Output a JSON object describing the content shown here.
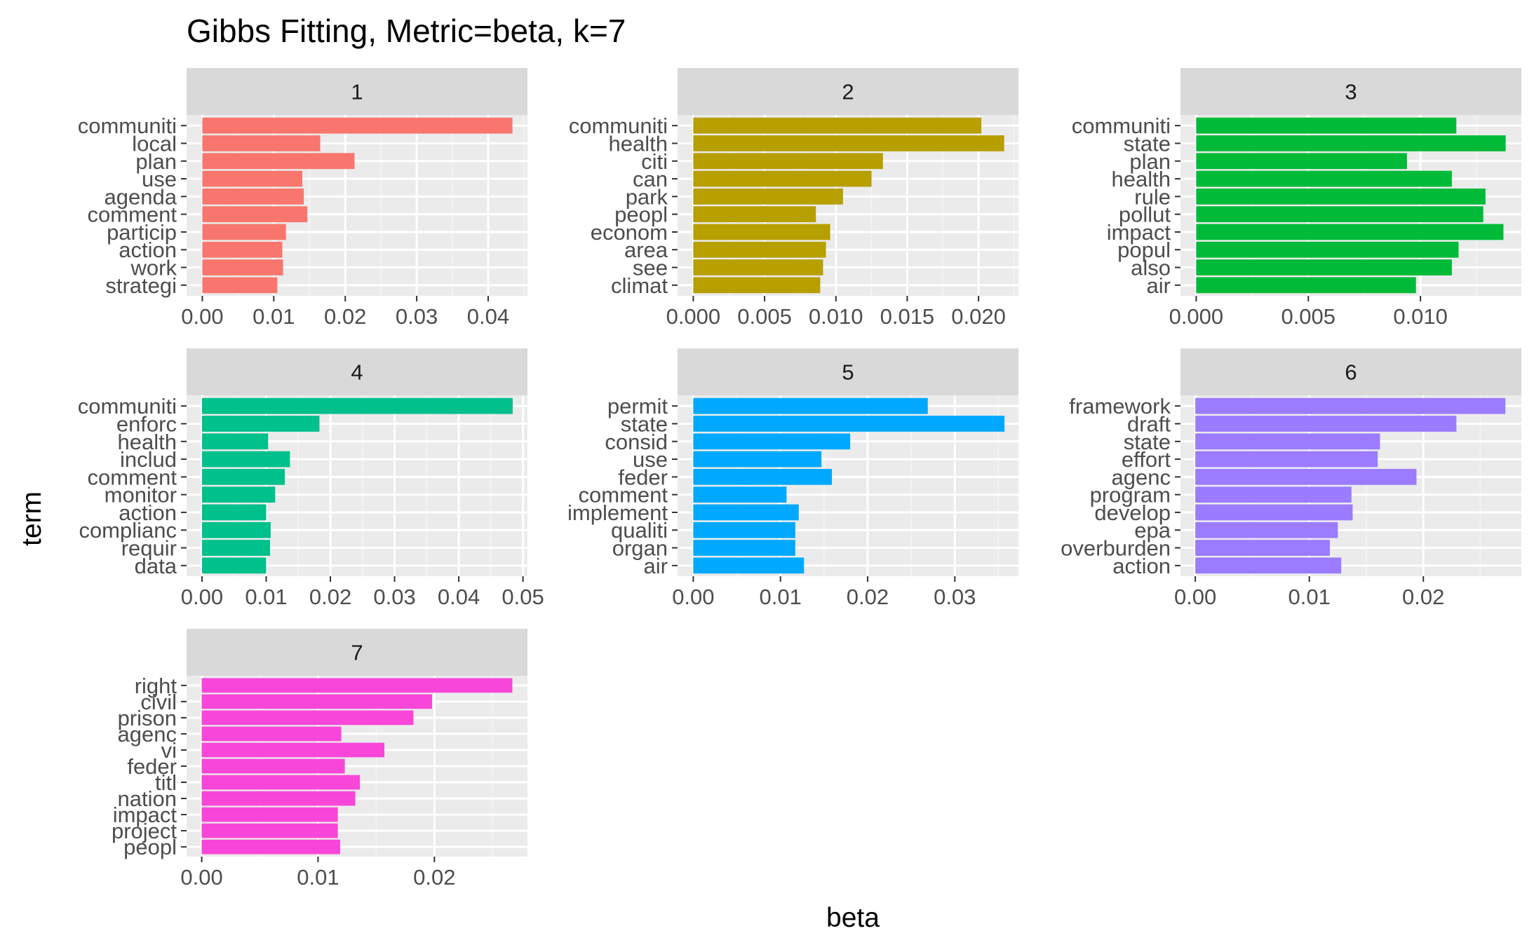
{
  "chart_data": {
    "type": "bar",
    "orientation": "horizontal",
    "title": "Gibbs Fitting, Metric=beta, k=7",
    "xlabel": "beta",
    "ylabel": "term",
    "grid": true,
    "legend": "none",
    "facets": [
      {
        "label": "1",
        "color": "#F8766D",
        "xlim": [
          -0.0022,
          0.0455
        ],
        "ticks": [
          0,
          0.01,
          0.02,
          0.03,
          0.04
        ],
        "tick_labels": [
          "0.00",
          "0.01",
          "0.02",
          "0.03",
          "0.04"
        ],
        "categories": [
          "communiti",
          "local",
          "plan",
          "use",
          "agenda",
          "comment",
          "particip",
          "action",
          "work",
          "strategi"
        ],
        "values": [
          0.0434,
          0.0165,
          0.0213,
          0.014,
          0.0142,
          0.0147,
          0.0117,
          0.0112,
          0.0113,
          0.0105
        ]
      },
      {
        "label": "2",
        "color": "#B79F00",
        "xlim": [
          -0.0011,
          0.0228
        ],
        "ticks": [
          0,
          0.005,
          0.01,
          0.015,
          0.02
        ],
        "tick_labels": [
          "0.000",
          "0.005",
          "0.010",
          "0.015",
          "0.020"
        ],
        "categories": [
          "communiti",
          "health",
          "citi",
          "can",
          "park",
          "peopl",
          "econom",
          "area",
          "see",
          "climat"
        ],
        "values": [
          0.0202,
          0.0218,
          0.0133,
          0.0125,
          0.0105,
          0.0086,
          0.0096,
          0.0093,
          0.0091,
          0.0089
        ]
      },
      {
        "label": "3",
        "color": "#00BA38",
        "xlim": [
          -0.0007,
          0.0145
        ],
        "ticks": [
          0,
          0.005,
          0.01
        ],
        "tick_labels": [
          "0.000",
          "0.005",
          "0.010"
        ],
        "categories": [
          "communiti",
          "state",
          "plan",
          "health",
          "rule",
          "pollut",
          "impact",
          "popul",
          "also",
          "air"
        ],
        "values": [
          0.0116,
          0.0138,
          0.0094,
          0.0114,
          0.0129,
          0.0128,
          0.0137,
          0.0117,
          0.0114,
          0.0098
        ]
      },
      {
        "label": "4",
        "color": "#00C08B",
        "xlim": [
          -0.0024,
          0.0507
        ],
        "ticks": [
          0,
          0.01,
          0.02,
          0.03,
          0.04,
          0.05
        ],
        "tick_labels": [
          "0.00",
          "0.01",
          "0.02",
          "0.03",
          "0.04",
          "0.05"
        ],
        "categories": [
          "communiti",
          "enforc",
          "health",
          "includ",
          "comment",
          "monitor",
          "action",
          "complianc",
          "requir",
          "data"
        ],
        "values": [
          0.0484,
          0.0183,
          0.0103,
          0.0137,
          0.0129,
          0.0114,
          0.01,
          0.0107,
          0.0106,
          0.01
        ]
      },
      {
        "label": "5",
        "color": "#00A9FF",
        "xlim": [
          -0.0018,
          0.0373
        ],
        "ticks": [
          0,
          0.01,
          0.02,
          0.03
        ],
        "tick_labels": [
          "0.00",
          "0.01",
          "0.02",
          "0.03"
        ],
        "categories": [
          "permit",
          "state",
          "consid",
          "use",
          "feder",
          "comment",
          "implement",
          "qualiti",
          "organ",
          "air"
        ],
        "values": [
          0.0269,
          0.0357,
          0.018,
          0.0147,
          0.0159,
          0.0107,
          0.0121,
          0.0117,
          0.0117,
          0.0127
        ]
      },
      {
        "label": "6",
        "color": "#9B7BFF",
        "xlim": [
          -0.0013,
          0.0286
        ],
        "ticks": [
          0,
          0.01,
          0.02
        ],
        "tick_labels": [
          "0.00",
          "0.01",
          "0.02"
        ],
        "categories": [
          "framework",
          "draft",
          "state",
          "effort",
          "agenc",
          "program",
          "develop",
          "epa",
          "overburden",
          "action"
        ],
        "values": [
          0.0272,
          0.0229,
          0.0162,
          0.016,
          0.0194,
          0.0137,
          0.0138,
          0.0125,
          0.0118,
          0.0128
        ]
      },
      {
        "label": "7",
        "color": "#F846D8",
        "xlim": [
          -0.0013,
          0.028
        ],
        "ticks": [
          0,
          0.01,
          0.02
        ],
        "tick_labels": [
          "0.00",
          "0.01",
          "0.02"
        ],
        "categories": [
          "right",
          "civil",
          "prison",
          "agenc",
          "vi",
          "feder",
          "titl",
          "nation",
          "impact",
          "project",
          "peopl"
        ],
        "values": [
          0.0267,
          0.0198,
          0.0182,
          0.012,
          0.0157,
          0.0123,
          0.0136,
          0.0132,
          0.0117,
          0.0117,
          0.0119
        ]
      }
    ]
  }
}
